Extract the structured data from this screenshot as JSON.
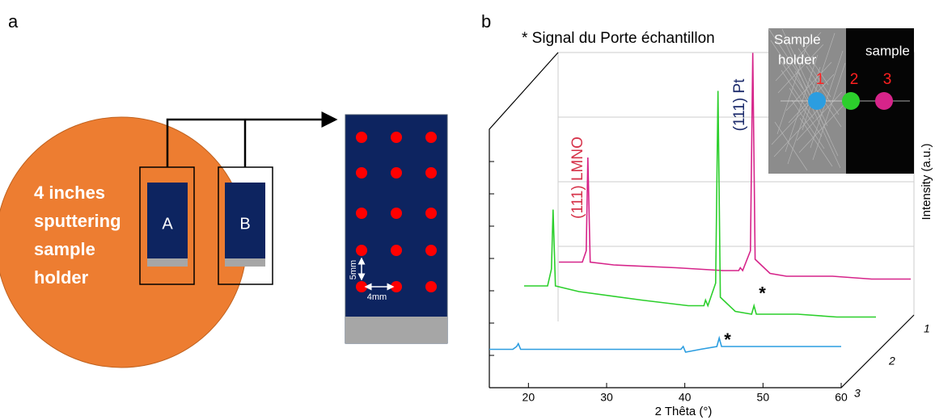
{
  "panel_a": {
    "label": "a",
    "holder_text": [
      "4 inches",
      "sputtering",
      "sample",
      "holder"
    ],
    "sample_a": "A",
    "sample_b": "B",
    "dim_vertical": "5mm",
    "dim_horizontal": "4mm"
  },
  "chart_data": {
    "type": "line",
    "panel_label": "b",
    "title": "* Signal du Porte échantillon",
    "x_label": "2 Thêta (°)",
    "y_label": "Intensity (a.u.)",
    "xlim": [
      15,
      60
    ],
    "xticks": [
      20,
      30,
      40,
      50,
      60
    ],
    "ylim": [
      0,
      100
    ],
    "x": [
      15,
      18,
      18.5,
      18.7,
      19,
      22,
      30,
      36,
      38,
      38.2,
      38.5,
      39.5,
      39.8,
      40.1,
      42,
      44.1,
      44.4,
      44.7,
      47,
      50,
      55,
      60
    ],
    "series": [
      {
        "name": "1",
        "color": "#d6248a",
        "values": [
          21,
          21,
          25,
          58,
          21,
          20,
          19,
          18,
          18,
          19,
          18,
          25,
          95,
          22,
          17,
          16,
          16,
          16,
          16,
          16,
          15,
          15
        ]
      },
      {
        "name": "2",
        "color": "#2ccf2c",
        "values": [
          24,
          24,
          30,
          51,
          24,
          22,
          19,
          17,
          17,
          19,
          17,
          25,
          93,
          20,
          15,
          14,
          17,
          14,
          14,
          14,
          13,
          13
        ]
      },
      {
        "name": "3",
        "color": "#2b9de0",
        "values": [
          13,
          13,
          14,
          15,
          13,
          13,
          13,
          13,
          13,
          13,
          13,
          13,
          14,
          12,
          13,
          14,
          17,
          14,
          14,
          14,
          14,
          14
        ]
      }
    ],
    "markers": [
      {
        "text": "*",
        "series": "2",
        "x": 44.4,
        "y": 21
      },
      {
        "text": "*",
        "series": "3",
        "x": 44.4,
        "y": 16
      }
    ],
    "peak_labels": [
      {
        "text": "(111) LMNO",
        "color": "#d6334a"
      },
      {
        "text": "(111) Pt",
        "color": "#1b2a6b"
      }
    ],
    "inset": {
      "left_label": [
        "Sample",
        "holder"
      ],
      "right_label": "sample",
      "points": [
        "1",
        "2",
        "3"
      ]
    }
  }
}
